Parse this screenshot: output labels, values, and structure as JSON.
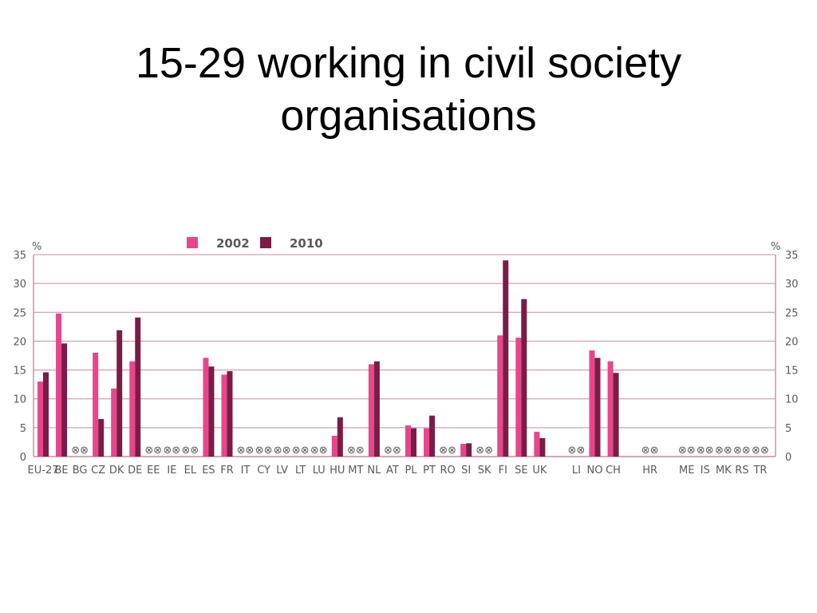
{
  "slide": {
    "title_line1": "15-29 working in civil society",
    "title_line2": "organisations"
  },
  "chart_data": {
    "type": "bar",
    "ylabel_left": "%",
    "ylabel_right": "%",
    "ylim": [
      0,
      35
    ],
    "yticks": [
      0,
      5,
      10,
      15,
      20,
      25,
      30,
      35
    ],
    "grid": true,
    "legend_position": "top",
    "no_data_marker": "⊗⊗",
    "series": [
      {
        "name": "2002",
        "color": "#e8468a"
      },
      {
        "name": "2010",
        "color": "#7b1c45"
      }
    ],
    "categories": [
      {
        "label": "EU-27",
        "v2002": 13.0,
        "v2010": 14.6
      },
      {
        "label": "BE",
        "v2002": 24.8,
        "v2010": 19.6
      },
      {
        "label": "BG",
        "v2002": null,
        "v2010": null
      },
      {
        "label": "CZ",
        "v2002": 18.0,
        "v2010": 6.5
      },
      {
        "label": "DK",
        "v2002": 11.8,
        "v2010": 21.9
      },
      {
        "label": "DE",
        "v2002": 16.5,
        "v2010": 24.1
      },
      {
        "label": "EE",
        "v2002": null,
        "v2010": null
      },
      {
        "label": "IE",
        "v2002": null,
        "v2010": null
      },
      {
        "label": "EL",
        "v2002": null,
        "v2010": null
      },
      {
        "label": "ES",
        "v2002": 17.1,
        "v2010": 15.6
      },
      {
        "label": "FR",
        "v2002": 14.2,
        "v2010": 14.8
      },
      {
        "label": "IT",
        "v2002": null,
        "v2010": null
      },
      {
        "label": "CY",
        "v2002": null,
        "v2010": null
      },
      {
        "label": "LV",
        "v2002": null,
        "v2010": null
      },
      {
        "label": "LT",
        "v2002": null,
        "v2010": null
      },
      {
        "label": "LU",
        "v2002": null,
        "v2010": null
      },
      {
        "label": "HU",
        "v2002": 3.6,
        "v2010": 6.8
      },
      {
        "label": "MT",
        "v2002": null,
        "v2010": null
      },
      {
        "label": "NL",
        "v2002": 16.0,
        "v2010": 16.5
      },
      {
        "label": "AT",
        "v2002": null,
        "v2010": null
      },
      {
        "label": "PL",
        "v2002": 5.4,
        "v2010": 4.9
      },
      {
        "label": "PT",
        "v2002": 4.9,
        "v2010": 7.1
      },
      {
        "label": "RO",
        "v2002": null,
        "v2010": null
      },
      {
        "label": "SI",
        "v2002": 2.2,
        "v2010": 2.3
      },
      {
        "label": "SK",
        "v2002": null,
        "v2010": null
      },
      {
        "label": "FI",
        "v2002": 21.0,
        "v2010": 34.0
      },
      {
        "label": "SE",
        "v2002": 20.6,
        "v2010": 27.3
      },
      {
        "label": "UK",
        "v2002": 4.3,
        "v2010": 3.2
      },
      {
        "label": "",
        "v2002": null,
        "v2010": null,
        "gap": true
      },
      {
        "label": "LI",
        "v2002": null,
        "v2010": null
      },
      {
        "label": "NO",
        "v2002": 18.4,
        "v2010": 17.1
      },
      {
        "label": "CH",
        "v2002": 16.5,
        "v2010": 14.5
      },
      {
        "label": "",
        "v2002": null,
        "v2010": null,
        "gap": true
      },
      {
        "label": "HR",
        "v2002": null,
        "v2010": null
      },
      {
        "label": "",
        "v2002": null,
        "v2010": null,
        "gap": true
      },
      {
        "label": "ME",
        "v2002": null,
        "v2010": null
      },
      {
        "label": "IS",
        "v2002": null,
        "v2010": null
      },
      {
        "label": "MK",
        "v2002": null,
        "v2010": null
      },
      {
        "label": "RS",
        "v2002": null,
        "v2010": null
      },
      {
        "label": "TR",
        "v2002": null,
        "v2010": null
      }
    ]
  }
}
